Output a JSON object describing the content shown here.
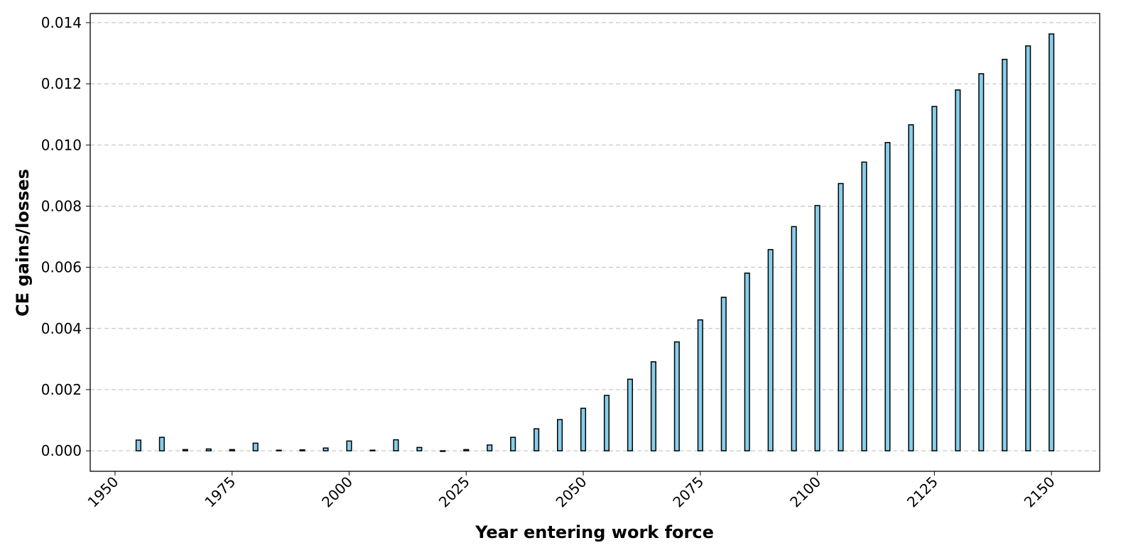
{
  "chart_data": {
    "type": "bar",
    "xlabel": "Year entering work force",
    "ylabel": "CE gains/losses",
    "x": [
      1955,
      1960,
      1965,
      1970,
      1975,
      1980,
      1985,
      1990,
      1995,
      2000,
      2005,
      2010,
      2015,
      2020,
      2025,
      2030,
      2035,
      2040,
      2045,
      2050,
      2055,
      2060,
      2065,
      2070,
      2075,
      2080,
      2085,
      2090,
      2095,
      2100,
      2105,
      2110,
      2115,
      2120,
      2125,
      2130,
      2135,
      2140,
      2145,
      2150
    ],
    "values": [
      0.00035,
      0.00044,
      4e-05,
      6e-05,
      4e-05,
      0.00025,
      2e-05,
      3e-05,
      9e-05,
      0.00032,
      2e-05,
      0.00036,
      0.00011,
      -2e-05,
      4e-05,
      0.00019,
      0.00044,
      0.00072,
      0.00102,
      0.00139,
      0.00181,
      0.00234,
      0.00291,
      0.00356,
      0.00428,
      0.00502,
      0.00581,
      0.00658,
      0.00733,
      0.00802,
      0.00874,
      0.00944,
      0.01008,
      0.01066,
      0.01126,
      0.0118,
      0.01233,
      0.0128,
      0.01324,
      0.01363
    ],
    "bar_width": 1,
    "color": "#87ceeb",
    "edgecolor": "#000000",
    "xlim": [
      1944.7,
      2160.3
    ],
    "ylim": [
      -0.00067,
      0.0143
    ],
    "xticks": [
      1950,
      1975,
      2000,
      2025,
      2050,
      2075,
      2100,
      2125,
      2150
    ],
    "yticks": [
      {
        "value": 0,
        "label": "0.000"
      },
      {
        "value": 0.002,
        "label": "0.002"
      },
      {
        "value": 0.004,
        "label": "0.004"
      },
      {
        "value": 0.006,
        "label": "0.006"
      },
      {
        "value": 0.008,
        "label": "0.008"
      },
      {
        "value": 0.01,
        "label": "0.010"
      },
      {
        "value": 0.012,
        "label": "0.012"
      },
      {
        "value": 0.014,
        "label": "0.014"
      }
    ],
    "grid": true
  }
}
